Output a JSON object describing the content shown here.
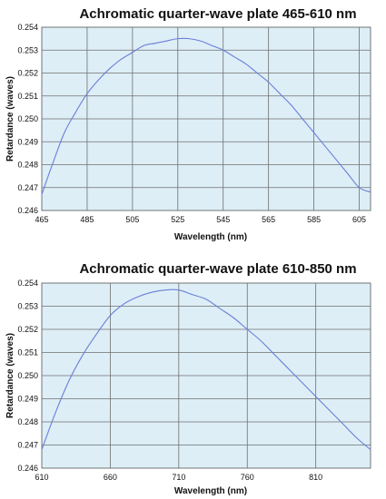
{
  "chart_data": [
    {
      "type": "line",
      "title": "Achromatic quarter-wave plate 465-610 nm",
      "xlabel": "Wavelength (nm)",
      "ylabel": "Retardance (waves)",
      "xlim": [
        465,
        610
      ],
      "ylim": [
        0.246,
        0.254
      ],
      "xticks": [
        465,
        485,
        505,
        525,
        545,
        565,
        585,
        605
      ],
      "xtick_labels": [
        "465",
        "485",
        "505",
        "525",
        "545",
        "565",
        "585",
        "605"
      ],
      "yticks": [
        0.246,
        0.247,
        0.248,
        0.249,
        0.25,
        0.251,
        0.252,
        0.253,
        0.254
      ],
      "ytick_labels": [
        "0.246",
        "0.247",
        "0.248",
        "0.249",
        "0.250",
        "0.251",
        "0.252",
        "0.253",
        "0.254"
      ],
      "grid": true,
      "colors": {
        "plot_bg": "#ddeef6",
        "line": "#6a7fd8",
        "grid": "#6f6f6f"
      },
      "series": [
        {
          "x": [
            465,
            470,
            475,
            480,
            485,
            490,
            495,
            500,
            505,
            510,
            515,
            520,
            525,
            530,
            535,
            540,
            545,
            550,
            555,
            560,
            565,
            570,
            575,
            580,
            585,
            590,
            595,
            600,
            605,
            610
          ],
          "values": [
            0.2467,
            0.2481,
            0.2494,
            0.2503,
            0.2511,
            0.2517,
            0.2522,
            0.2526,
            0.2529,
            0.2532,
            0.2533,
            0.2534,
            0.2535,
            0.2535,
            0.2534,
            0.2532,
            0.253,
            0.2527,
            0.2524,
            0.252,
            0.2516,
            0.2511,
            0.2506,
            0.25,
            0.2494,
            0.2488,
            0.2482,
            0.2476,
            0.247,
            0.2468
          ]
        }
      ]
    },
    {
      "type": "line",
      "title": "Achromatic quarter-wave plate 610-850 nm",
      "xlabel": "Wavelength (nm)",
      "ylabel": "Retardance (waves)",
      "xlim": [
        610,
        850
      ],
      "ylim": [
        0.246,
        0.254
      ],
      "xticks": [
        610,
        660,
        710,
        760,
        810
      ],
      "xtick_labels": [
        "610",
        "660",
        "710",
        "760",
        "810"
      ],
      "yticks": [
        0.246,
        0.247,
        0.248,
        0.249,
        0.25,
        0.251,
        0.252,
        0.253,
        0.254
      ],
      "ytick_labels": [
        "0.246",
        "0.247",
        "0.248",
        "0.249",
        "0.250",
        "0.251",
        "0.252",
        "0.253",
        "0.254"
      ],
      "grid": true,
      "colors": {
        "plot_bg": "#ddeef6",
        "line": "#6a7fd8",
        "grid": "#6f6f6f"
      },
      "series": [
        {
          "x": [
            610,
            620,
            630,
            640,
            650,
            660,
            670,
            680,
            690,
            700,
            710,
            720,
            730,
            740,
            750,
            760,
            770,
            780,
            790,
            800,
            810,
            820,
            830,
            840,
            850
          ],
          "values": [
            0.2468,
            0.2484,
            0.2498,
            0.2509,
            0.2518,
            0.2526,
            0.2531,
            0.2534,
            0.2536,
            0.2537,
            0.2537,
            0.2535,
            0.2533,
            0.2529,
            0.2525,
            0.252,
            0.2515,
            0.2509,
            0.2503,
            0.2497,
            0.2491,
            0.2485,
            0.2479,
            0.2473,
            0.2468
          ]
        }
      ]
    }
  ]
}
